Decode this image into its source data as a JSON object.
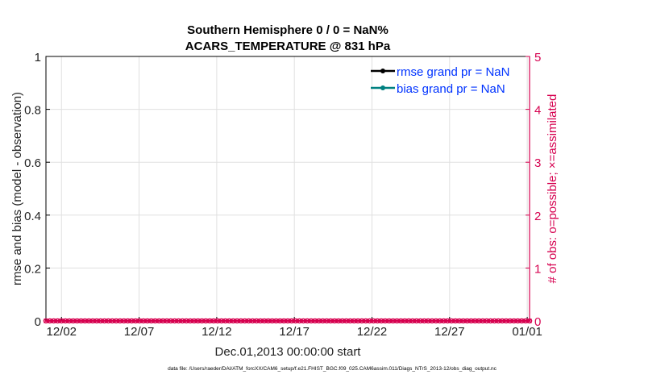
{
  "chart_data": {
    "type": "line",
    "title": "Southern Hemisphere 0 / 0 = NaN%",
    "subtitle": "ACARS_TEMPERATURE @ 831 hPa",
    "xlabel": "Dec.01,2013 00:00:00 start",
    "ylabel": "rmse and bias (model - observation)",
    "ylabel_right": "# of obs: o=possible; ×=assimilated",
    "xlim": [
      "2013-12-01",
      "2014-01-01"
    ],
    "ylim": [
      0,
      1
    ],
    "ylim_right": [
      0,
      5
    ],
    "x_tick_labels": [
      "12/02",
      "12/07",
      "12/12",
      "12/17",
      "12/22",
      "12/27",
      "01/01"
    ],
    "y_tick_labels": [
      "0",
      "0.2",
      "0.4",
      "0.6",
      "0.8",
      "1"
    ],
    "y_right_tick_labels": [
      "0",
      "1",
      "2",
      "3",
      "4",
      "5"
    ],
    "grid": true,
    "legend_position": "top-right",
    "series": [
      {
        "name": "rmse grand pr = NaN",
        "color": "#000000",
        "values": []
      },
      {
        "name": "bias grand pr = NaN",
        "color": "#008080",
        "values": []
      },
      {
        "name": "possible",
        "color": "#d6004f",
        "axis": "right",
        "marker": "o",
        "values": [
          0,
          0,
          0,
          0,
          0,
          0,
          0,
          0,
          0,
          0,
          0,
          0,
          0,
          0,
          0,
          0,
          0,
          0,
          0,
          0,
          0,
          0,
          0,
          0,
          0,
          0,
          0,
          0,
          0,
          0,
          0,
          0,
          0,
          0,
          0,
          0,
          0,
          0,
          0,
          0,
          0,
          0,
          0,
          0,
          0,
          0,
          0,
          0,
          0,
          0,
          0,
          0,
          0,
          0,
          0,
          0,
          0,
          0,
          0,
          0,
          0,
          0,
          0,
          0,
          0,
          0,
          0,
          0,
          0,
          0,
          0,
          0,
          0,
          0,
          0,
          0,
          0,
          0,
          0,
          0,
          0,
          0,
          0,
          0,
          0,
          0,
          0,
          0,
          0,
          0,
          0,
          0,
          0,
          0,
          0,
          0,
          0,
          0,
          0,
          0,
          0,
          0,
          0,
          0,
          0,
          0,
          0,
          0,
          0,
          0,
          0,
          0,
          0,
          0,
          0,
          0,
          0,
          0,
          0,
          0,
          0,
          0,
          0,
          0,
          0
        ]
      },
      {
        "name": "assimilated",
        "color": "#d6004f",
        "axis": "right",
        "marker": "x",
        "values": [
          0,
          0,
          0,
          0,
          0,
          0,
          0,
          0,
          0,
          0,
          0,
          0,
          0,
          0,
          0,
          0,
          0,
          0,
          0,
          0,
          0,
          0,
          0,
          0,
          0,
          0,
          0,
          0,
          0,
          0,
          0,
          0,
          0,
          0,
          0,
          0,
          0,
          0,
          0,
          0,
          0,
          0,
          0,
          0,
          0,
          0,
          0,
          0,
          0,
          0,
          0,
          0,
          0,
          0,
          0,
          0,
          0,
          0,
          0,
          0,
          0,
          0,
          0,
          0,
          0,
          0,
          0,
          0,
          0,
          0,
          0,
          0,
          0,
          0,
          0,
          0,
          0,
          0,
          0,
          0,
          0,
          0,
          0,
          0,
          0,
          0,
          0,
          0,
          0,
          0,
          0,
          0,
          0,
          0,
          0,
          0,
          0,
          0,
          0,
          0,
          0,
          0,
          0,
          0,
          0,
          0,
          0,
          0,
          0,
          0,
          0,
          0,
          0,
          0,
          0,
          0,
          0,
          0,
          0,
          0,
          0,
          0,
          0,
          0,
          0
        ]
      }
    ],
    "legend_text_color": "#0033ff"
  },
  "footer": "data file: /Users/raeder/DAI/ATM_forcXX/CAM6_setup/f.e21.FHIST_BGC.f09_025.CAM6assim.011/Diags_NTrS_2013-12/obs_diag_output.nc"
}
